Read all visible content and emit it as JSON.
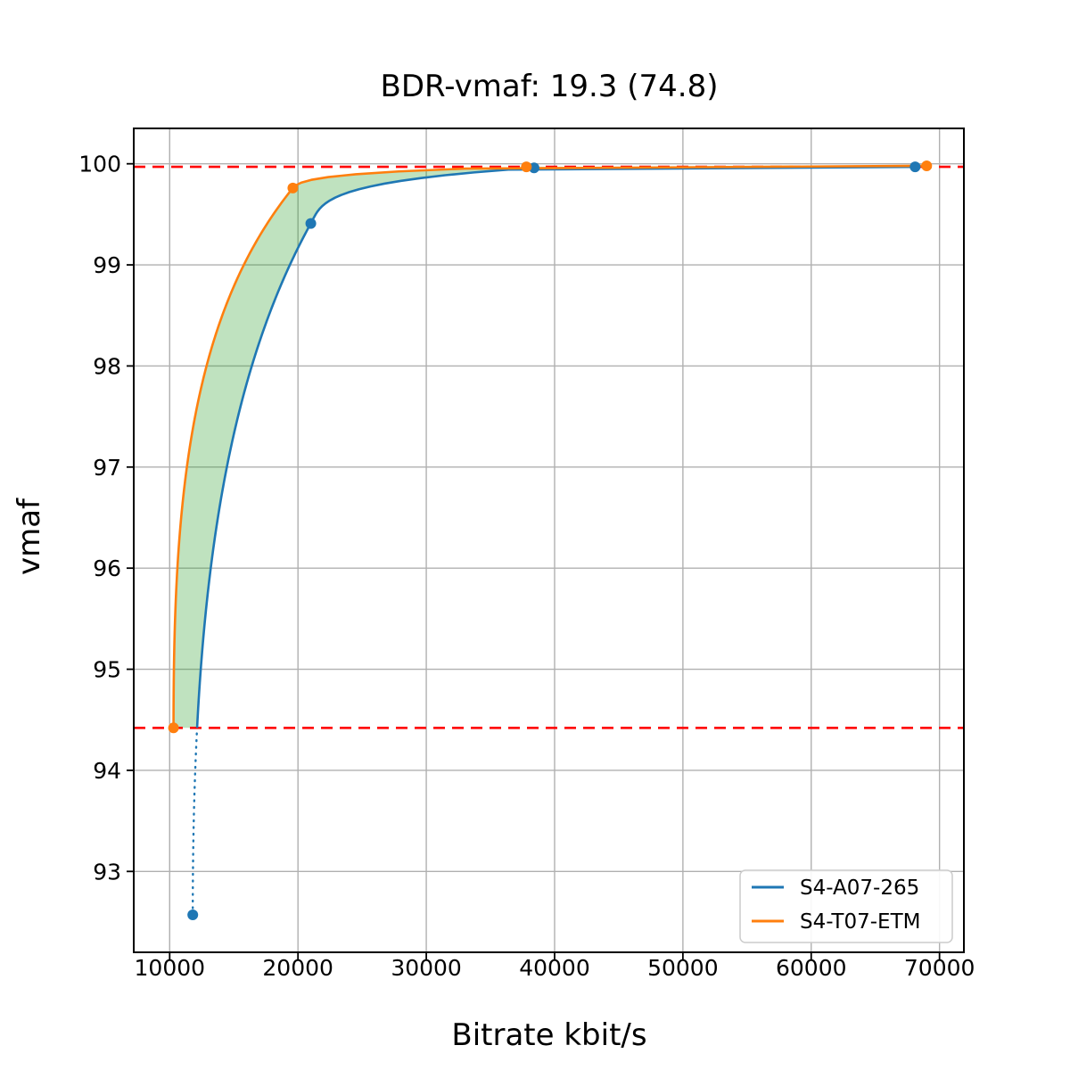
{
  "chart_data": {
    "type": "line",
    "title": "BDR-vmaf: 19.3 (74.8)",
    "xlabel": "Bitrate kbit/s",
    "ylabel": "vmaf",
    "xlim": [
      7200,
      71900
    ],
    "ylim": [
      92.2,
      100.35
    ],
    "x_ticks": [
      10000,
      20000,
      30000,
      40000,
      50000,
      60000,
      70000
    ],
    "y_ticks": [
      93,
      94,
      95,
      96,
      97,
      98,
      99,
      100
    ],
    "grid": true,
    "grid_color": "#b0b0b0",
    "legend_position": "lower right",
    "series": [
      {
        "name": "S4-A07-265",
        "color": "#1f77b4",
        "points": [
          [
            11800,
            92.57
          ],
          [
            21000,
            99.41
          ],
          [
            38400,
            99.96
          ],
          [
            68100,
            99.97
          ]
        ]
      },
      {
        "name": "S4-T07-ETM",
        "color": "#ff7f0e",
        "points": [
          [
            10300,
            94.42
          ],
          [
            19600,
            99.76
          ],
          [
            37800,
            99.97
          ],
          [
            69000,
            99.98
          ]
        ]
      }
    ],
    "integration_bounds": {
      "lower_vmaf": 94.42,
      "upper_vmaf": 99.97,
      "line_color": "#ff0000",
      "line_style": "dashed"
    },
    "shaded_region": {
      "color": "#2ca02c",
      "opacity": 0.3,
      "between": [
        "S4-T07-ETM",
        "S4-A07-265"
      ]
    }
  }
}
